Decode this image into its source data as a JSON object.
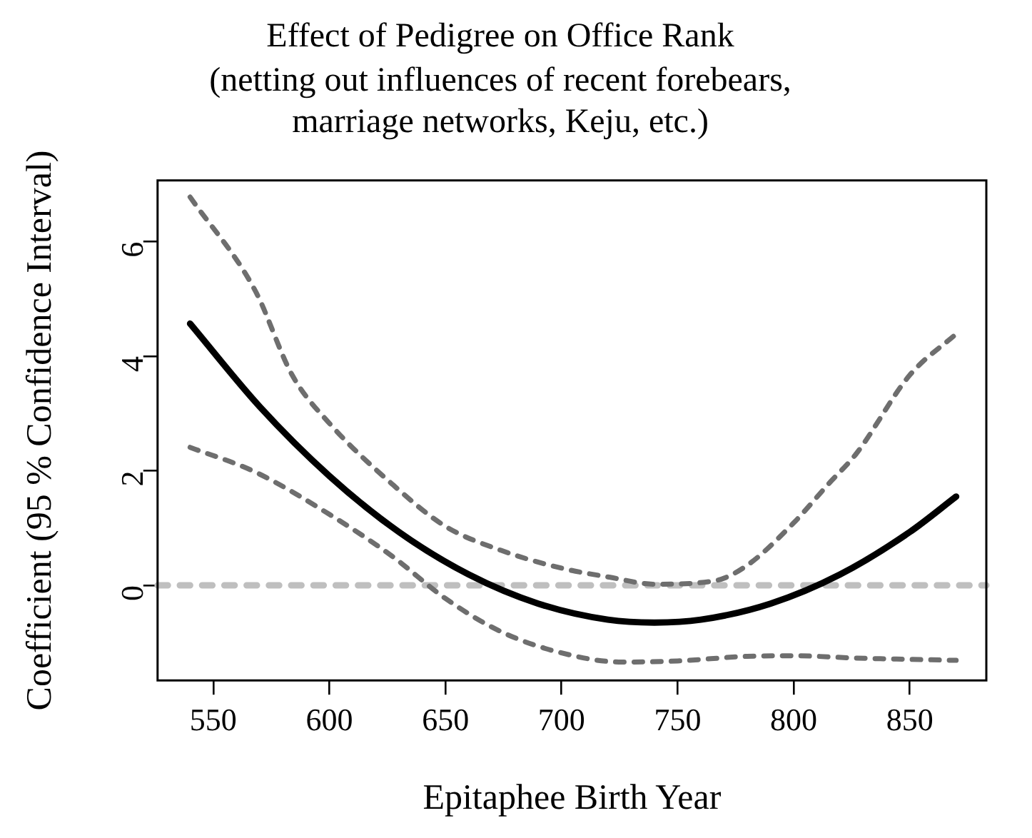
{
  "chart_data": {
    "type": "line",
    "title": "Effect of Pedigree on Office Rank",
    "subtitle": "(netting out influences of recent forebears,\nmarriage networks, Keju, etc.)",
    "xlabel": "Epitaphee Birth Year",
    "ylabel": "Coefficient (95 % Confidence Interval)",
    "xlim": [
      526,
      883
    ],
    "xticks": [
      550,
      600,
      650,
      700,
      750,
      800,
      850
    ],
    "ylim": [
      -1.66,
      7.07
    ],
    "yticks": [
      0,
      2,
      4,
      6
    ],
    "grid": false,
    "legend": false,
    "marker": "none",
    "series": [
      {
        "color": "#000000",
        "line_style": "solid",
        "x": [
          540,
          570,
          600,
          630,
          660,
          690,
          720,
          740,
          760,
          790,
          820,
          850,
          870
        ],
        "values": [
          4.57,
          3.12,
          1.91,
          0.93,
          0.19,
          -0.32,
          -0.6,
          -0.65,
          -0.6,
          -0.32,
          0.19,
          0.93,
          1.55
        ]
      },
      {
        "color": "#6e6e6e",
        "line_style": "dashed",
        "x": [
          540,
          568,
          584,
          600,
          627,
          650,
          674,
          700,
          721,
          740,
          766,
          780,
          800,
          815,
          827,
          850,
          870
        ],
        "values": [
          6.78,
          5.15,
          3.67,
          2.83,
          1.77,
          1.03,
          0.61,
          0.3,
          0.14,
          0.02,
          0.08,
          0.35,
          1.09,
          1.77,
          2.3,
          3.67,
          4.39
        ]
      },
      {
        "color": "#6e6e6e",
        "line_style": "dashed",
        "x": [
          540,
          568,
          600,
          627,
          650,
          674,
          700,
          726,
          750,
          780,
          800,
          827,
          870
        ],
        "values": [
          2.41,
          1.98,
          1.24,
          0.51,
          -0.23,
          -0.81,
          -1.18,
          -1.34,
          -1.32,
          -1.24,
          -1.23,
          -1.27,
          -1.31
        ]
      }
    ],
    "ref_lines": [
      {
        "axis": "y",
        "value": 0,
        "color": "#bfbfbf",
        "line_style": "dashed"
      }
    ]
  }
}
